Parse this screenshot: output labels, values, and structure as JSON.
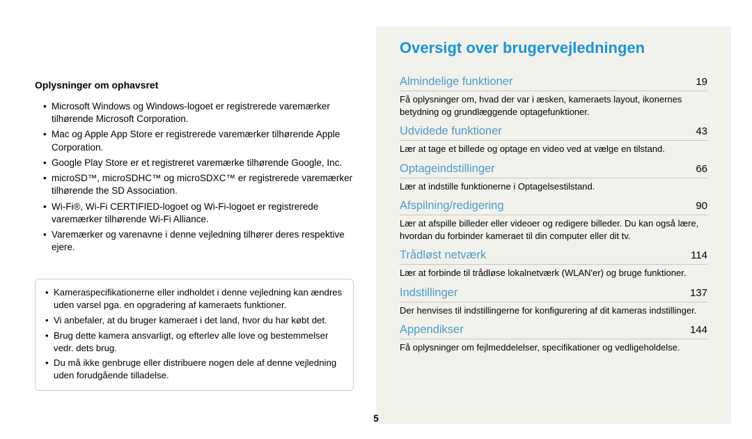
{
  "left": {
    "heading": "Oplysninger om ophavsret",
    "bullets": [
      "Microsoft Windows og Windows-logoet er registrerede varemærker tilhørende Microsoft Corporation.",
      "Mac og Apple App Store er registrerede varemærker tilhørende Apple Corporation.",
      "Google Play Store er et registreret varemærke tilhørende Google, Inc.",
      "microSD™, microSDHC™ og microSDXC™ er registrerede varemærker tilhørende the SD Association.",
      "Wi-Fi®, Wi-Fi CERTIFIED-logoet og Wi-Fi-logoet er registrerede varemærker tilhørende Wi-Fi Alliance.",
      "Varemærker og varenavne i denne vejledning tilhører deres respektive ejere."
    ],
    "box_bullets": [
      "Kameraspecifikationerne eller indholdet i denne vejledning kan ændres uden varsel pga. en opgradering af kameraets funktioner.",
      "Vi anbefaler, at du bruger kameraet i det land, hvor du har købt det.",
      "Brug dette kamera ansvarligt, og efterlev alle love og bestemmelser vedr. dets brug.",
      "Du må ikke genbruge eller distribuere nogen dele af denne vejledning uden forudgående tilladelse."
    ]
  },
  "right": {
    "title": "Oversigt over brugervejledningen",
    "items": [
      {
        "label": "Almindelige funktioner",
        "page": "19",
        "desc": "Få oplysninger om, hvad der var i æsken, kameraets layout, ikonernes betydning og grundlæggende optagefunktioner."
      },
      {
        "label": "Udvidede funktioner",
        "page": "43",
        "desc": "Lær at tage et billede og optage en video ved at vælge en tilstand."
      },
      {
        "label": "Optageindstillinger",
        "page": "66",
        "desc": "Lær at indstille funktionerne i Optagelsestilstand."
      },
      {
        "label": "Afspilning/redigering",
        "page": "90",
        "desc": "Lær at afspille billeder eller videoer og redigere billeder. Du kan også lære, hvordan du forbinder kameraet til din computer eller dit tv."
      },
      {
        "label": "Trådløst netværk",
        "page": "114",
        "desc": "Lær at forbinde til trådløse lokalnetværk (WLAN'er) og bruge funktioner."
      },
      {
        "label": "Indstillinger",
        "page": "137",
        "desc": "Der henvises til indstillingerne for konfigurering af dit kameras indstillinger."
      },
      {
        "label": "Appendikser",
        "page": "144",
        "desc": "Få oplysninger om fejlmeddelelser, specifikationer og vedligeholdelse."
      }
    ]
  },
  "page_number": "5",
  "colors": {
    "right_bg": "#f2f2ed",
    "title_color": "#1a94d6",
    "toc_label_color": "#4b9cc9",
    "toc_rule": "#c8c8be",
    "box_border": "#cccccc"
  }
}
